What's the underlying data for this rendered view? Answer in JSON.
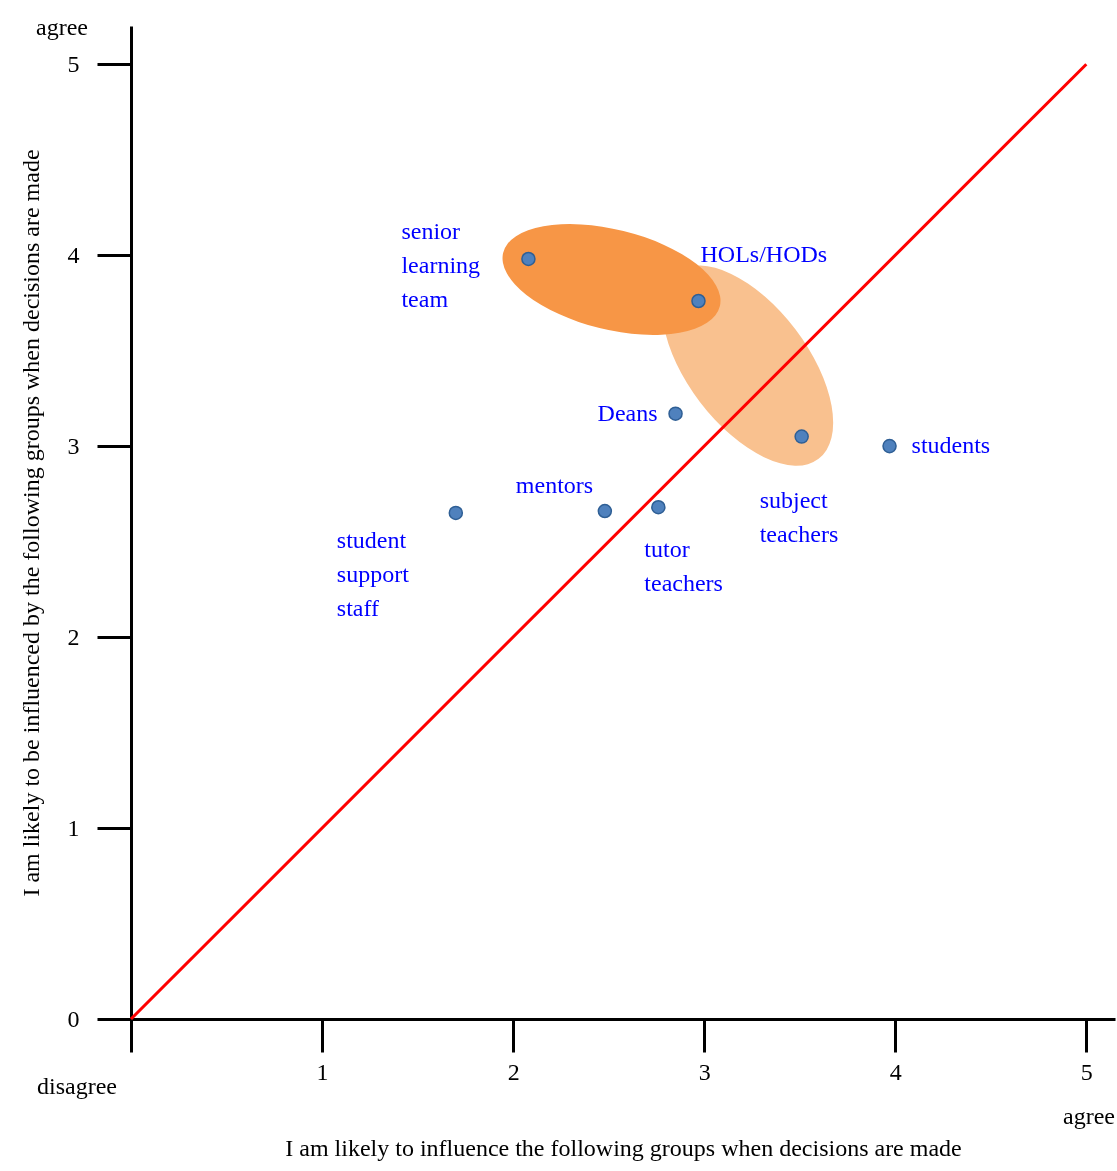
{
  "chart_data": {
    "type": "scatter",
    "xlabel": "I am likely to influence the following groups when decisions are made",
    "ylabel": "I am likely to be influenced by the following groups when decisions are made",
    "xlim": [
      0,
      5.15
    ],
    "ylim": [
      0,
      5.2
    ],
    "xticks": [
      {
        "value": 0,
        "label": null
      },
      1,
      2,
      3,
      4,
      5
    ],
    "yticks": [
      0,
      1,
      2,
      3,
      4,
      5
    ],
    "grid": false,
    "series": [
      {
        "type": "line",
        "x": [
          0,
          5
        ],
        "values": [
          0,
          5
        ],
        "color": "#ff0000",
        "marker": "none",
        "line_style": "solid"
      },
      {
        "type": "scatter",
        "x": [
          2.08,
          2.97,
          2.85,
          3.51,
          3.97,
          1.7,
          2.48,
          2.76
        ],
        "values": [
          3.98,
          3.76,
          3.17,
          3.05,
          3.0,
          2.65,
          2.66,
          2.68
        ],
        "color": "#4f81bd",
        "marker": "circle"
      }
    ],
    "annotations": [
      {
        "text": "senior learning team",
        "x": 2.08,
        "y": 3.98
      },
      {
        "text": "HOLs/HODs",
        "x": 2.97,
        "y": 3.76
      },
      {
        "text": "Deans",
        "x": 2.85,
        "y": 3.17
      },
      {
        "text": "subject teachers",
        "x": 3.51,
        "y": 3.05
      },
      {
        "text": "students",
        "x": 3.97,
        "y": 3.0
      },
      {
        "text": "student support staff",
        "x": 1.7,
        "y": 2.65
      },
      {
        "text": "mentors",
        "x": 2.48,
        "y": 2.66
      },
      {
        "text": "tutor teachers",
        "x": 2.76,
        "y": 2.68
      },
      "agree",
      "disagree",
      "agree"
    ]
  }
}
